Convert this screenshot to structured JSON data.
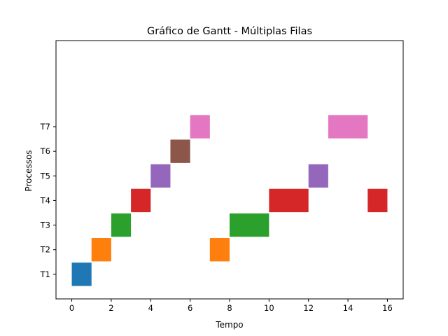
{
  "chart_data": {
    "type": "gantt",
    "title": "Gráfico de Gantt - Múltiplas Filas",
    "xlabel": "Tempo",
    "ylabel": "Processos",
    "xlim": [
      -0.8,
      16.8
    ],
    "ylim": [
      0,
      10.5
    ],
    "x_ticks": [
      0,
      2,
      4,
      6,
      8,
      10,
      12,
      14,
      16
    ],
    "grid": false,
    "categories": [
      "T1",
      "T2",
      "T3",
      "T4",
      "T5",
      "T6",
      "T7"
    ],
    "colors": [
      "#1f77b4",
      "#ff7f0e",
      "#2ca02c",
      "#d62728",
      "#9467bd",
      "#8c564b",
      "#e377c2"
    ],
    "series": [
      {
        "name": "T1",
        "segments": [
          [
            0,
            1
          ]
        ]
      },
      {
        "name": "T2",
        "segments": [
          [
            1,
            2
          ],
          [
            7,
            8
          ]
        ]
      },
      {
        "name": "T3",
        "segments": [
          [
            2,
            3
          ],
          [
            8,
            10
          ]
        ]
      },
      {
        "name": "T4",
        "segments": [
          [
            3,
            4
          ],
          [
            10,
            12
          ],
          [
            15,
            16
          ]
        ]
      },
      {
        "name": "T5",
        "segments": [
          [
            4,
            5
          ],
          [
            12,
            13
          ]
        ]
      },
      {
        "name": "T6",
        "segments": [
          [
            5,
            6
          ]
        ]
      },
      {
        "name": "T7",
        "segments": [
          [
            6,
            7
          ],
          [
            13,
            15
          ]
        ]
      }
    ]
  }
}
